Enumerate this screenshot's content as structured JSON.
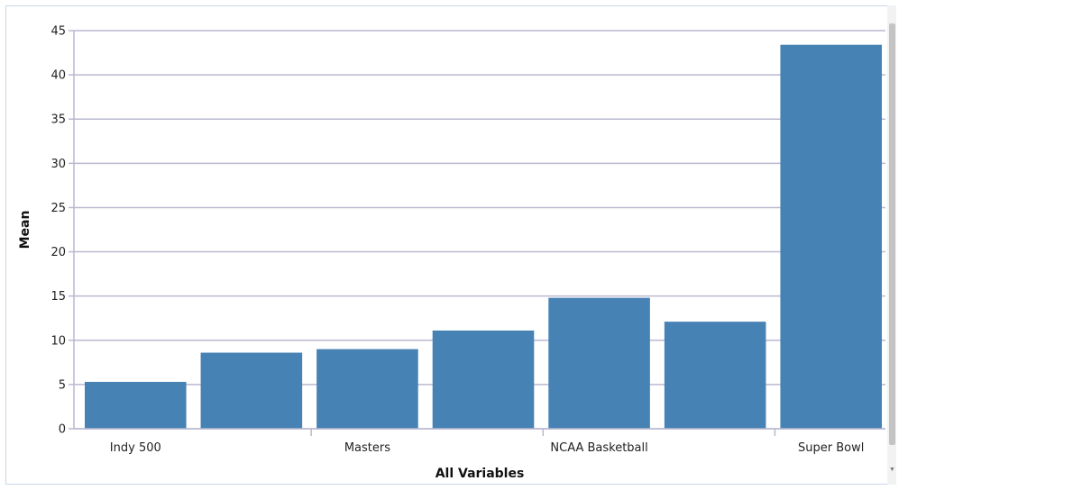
{
  "chart_data": {
    "type": "bar",
    "categories": [
      "Indy 500",
      "",
      "Masters",
      "",
      "NCAA Basketball",
      "",
      "Super Bowl"
    ],
    "values": [
      5.3,
      8.6,
      9.0,
      11.1,
      14.8,
      12.1,
      43.4
    ],
    "xlabel": "All Variables",
    "ylabel": "Mean",
    "ylim": [
      0,
      45
    ],
    "yticks": [
      0,
      5,
      10,
      15,
      20,
      25,
      30,
      35,
      40,
      45
    ],
    "grid": true,
    "bar_color": "#4682b4",
    "grid_color": "#b9b9d0"
  }
}
